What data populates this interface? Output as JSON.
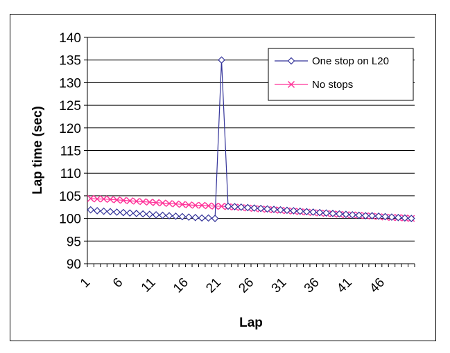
{
  "chart_data": {
    "type": "line",
    "title": "",
    "xlabel": "Lap",
    "ylabel": "Lap time (sec)",
    "ylim": [
      90,
      140
    ],
    "yticks": [
      90,
      95,
      100,
      105,
      110,
      115,
      120,
      125,
      130,
      135,
      140
    ],
    "xtick_labels": [
      "1",
      "6",
      "11",
      "16",
      "21",
      "26",
      "31",
      "36",
      "41",
      "46"
    ],
    "grid": "horizontal",
    "legend_position": "top-right",
    "x": [
      1,
      2,
      3,
      4,
      5,
      6,
      7,
      8,
      9,
      10,
      11,
      12,
      13,
      14,
      15,
      16,
      17,
      18,
      19,
      20,
      21,
      22,
      23,
      24,
      25,
      26,
      27,
      28,
      29,
      30,
      31,
      32,
      33,
      34,
      35,
      36,
      37,
      38,
      39,
      40,
      41,
      42,
      43,
      44,
      45,
      46,
      47,
      48,
      49,
      50
    ],
    "series": [
      {
        "name": "One stop on L20",
        "color": "#333399",
        "marker": "diamond",
        "values": [
          101.9,
          101.7,
          101.6,
          101.5,
          101.4,
          101.3,
          101.2,
          101.1,
          101.0,
          100.9,
          100.8,
          100.7,
          100.6,
          100.5,
          100.4,
          100.3,
          100.2,
          100.1,
          100.1,
          100.0,
          135.0,
          102.7,
          102.6,
          102.5,
          102.4,
          102.3,
          102.2,
          102.1,
          102.0,
          101.9,
          101.8,
          101.7,
          101.6,
          101.5,
          101.4,
          101.3,
          101.2,
          101.1,
          101.0,
          100.9,
          100.8,
          100.7,
          100.6,
          100.6,
          100.5,
          100.4,
          100.3,
          100.2,
          100.1,
          100.0
        ]
      },
      {
        "name": "No stops",
        "color": "#ff3399",
        "marker": "x",
        "values": [
          104.4,
          104.3,
          104.3,
          104.2,
          104.1,
          104.0,
          103.9,
          103.8,
          103.7,
          103.6,
          103.5,
          103.4,
          103.3,
          103.2,
          103.1,
          103.0,
          102.9,
          102.9,
          102.8,
          102.7,
          102.7,
          102.6,
          102.5,
          102.4,
          102.3,
          102.2,
          102.1,
          102.0,
          101.9,
          101.8,
          101.7,
          101.6,
          101.5,
          101.4,
          101.3,
          101.2,
          101.1,
          101.0,
          100.9,
          100.8,
          100.8,
          100.7,
          100.6,
          100.5,
          100.4,
          100.3,
          100.2,
          100.2,
          100.1,
          100.0
        ]
      }
    ]
  }
}
